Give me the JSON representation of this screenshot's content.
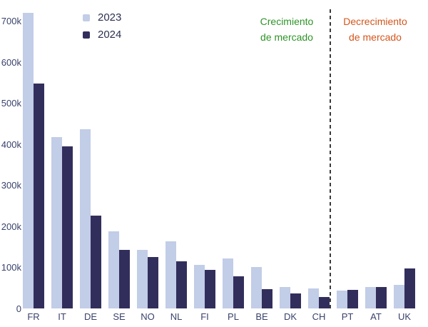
{
  "legend": {
    "items": [
      {
        "label": "2023",
        "color": "#c2cde7"
      },
      {
        "label": "2024",
        "color": "#322e5c"
      }
    ]
  },
  "annotations": {
    "growth": {
      "lines": [
        "Crecimiento",
        "de mercado"
      ],
      "color": "#2e9428"
    },
    "decline": {
      "lines": [
        "Decrecimiento",
        "de mercado"
      ],
      "color": "#d4551c"
    }
  },
  "colors": {
    "series_2023": "#c2cde7",
    "series_2024": "#322e5c",
    "axis_text": "#39426b",
    "divider": "#3a3a3a",
    "background": "#ffffff"
  },
  "chart_data": {
    "type": "bar",
    "title": "",
    "xlabel": "",
    "ylabel": "",
    "categories": [
      "FR",
      "IT",
      "DE",
      "SE",
      "NO",
      "NL",
      "FI",
      "PL",
      "BE",
      "DK",
      "CH",
      "PT",
      "AT",
      "UK"
    ],
    "series": [
      {
        "name": "2023",
        "color": "#c2cde7",
        "values": [
          720000,
          417000,
          437000,
          187000,
          142000,
          163000,
          106000,
          121000,
          100000,
          52000,
          48000,
          44000,
          52000,
          57000
        ]
      },
      {
        "name": "2024",
        "color": "#322e5c",
        "values": [
          548000,
          394000,
          226000,
          142000,
          125000,
          114000,
          94000,
          78000,
          47000,
          36000,
          28000,
          45000,
          53000,
          97000
        ]
      }
    ],
    "ylim": [
      0,
      720000
    ],
    "yticks": [
      {
        "label": "700k",
        "value": 700000
      },
      {
        "label": "600k",
        "value": 600000
      },
      {
        "label": "500k",
        "value": 500000
      },
      {
        "label": "400k",
        "value": 400000
      },
      {
        "label": "300k",
        "value": 300000
      },
      {
        "label": "200k",
        "value": 200000
      },
      {
        "label": "100k",
        "value": 100000
      },
      {
        "label": "0",
        "value": 0
      }
    ],
    "grid": false,
    "legend_position": "top-left-inside",
    "divider_between": [
      "CH",
      "PT"
    ],
    "region_left_of_divider": "Crecimiento de mercado",
    "region_right_of_divider": "Decrecimiento de mercado"
  }
}
